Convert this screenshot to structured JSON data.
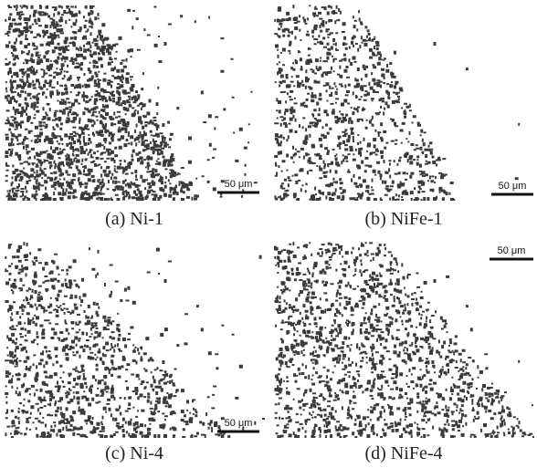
{
  "panels": [
    {
      "caption": "(a) Ni-1",
      "scale_bar": "50 μm"
    },
    {
      "caption": "(b) NiFe-1",
      "scale_bar": "50 μm"
    },
    {
      "caption": "(c) Ni-4",
      "scale_bar": "50 μm"
    },
    {
      "caption": "(d) NiFe-4",
      "scale_bar": "50 μm"
    }
  ]
}
